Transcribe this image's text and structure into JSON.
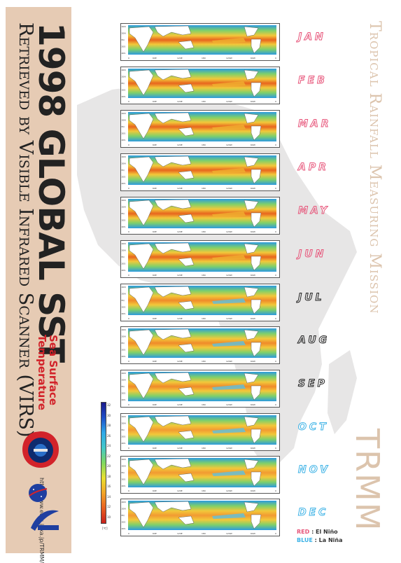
{
  "title": {
    "main": "1998 GLOBAL SST",
    "subtitle": "Retrieved by Visible Infrared Scanner (VIRS)",
    "sst_line1": "Sea Surface",
    "sst_line2": "Temperature",
    "url": "http://www.eorc.jaxa.jp/TRMM/"
  },
  "mission": {
    "name": "Tropical Rainfall Measuring Mission",
    "acronym": "TRMM"
  },
  "months": [
    {
      "label": "JAN",
      "color": "#e7557a"
    },
    {
      "label": "FEB",
      "color": "#e7557a"
    },
    {
      "label": "MAR",
      "color": "#e7557a"
    },
    {
      "label": "APR",
      "color": "#e7557a"
    },
    {
      "label": "MAY",
      "color": "#e7557a"
    },
    {
      "label": "JUN",
      "color": "#e7557a"
    },
    {
      "label": "JUL",
      "color": "#222222"
    },
    {
      "label": "AUG",
      "color": "#222222"
    },
    {
      "label": "SEP",
      "color": "#222222"
    },
    {
      "label": "OCT",
      "color": "#3cb2e6"
    },
    {
      "label": "NOV",
      "color": "#3cb2e6"
    },
    {
      "label": "DEC",
      "color": "#3cb2e6"
    }
  ],
  "map": {
    "lat_ticks": [
      "40N",
      "20N",
      "EQ",
      "20S",
      "40S"
    ],
    "lon_ticks": [
      "0",
      "60E",
      "120E",
      "180",
      "120W",
      "60W",
      "0"
    ]
  },
  "colorbar": {
    "ticks": [
      "32",
      "30",
      "28",
      "26",
      "24",
      "22",
      "20",
      "18",
      "16",
      "14",
      "12",
      "10"
    ],
    "unit": "[℃]"
  },
  "legend": {
    "red_label": "RED",
    "red_text": ": El Niño",
    "blue_label": "BLUE",
    "blue_text": ": La Niña"
  },
  "colors": {
    "band": "#e6cbb4",
    "accent_red": "#d2232a",
    "el_nino": "#e7557a",
    "la_nina": "#3cb2e6",
    "watermark": "#dcc4ad"
  },
  "icons": [
    "trmm-mission-badge-icon",
    "nasa-logo-icon",
    "jaxa-logo-icon"
  ]
}
